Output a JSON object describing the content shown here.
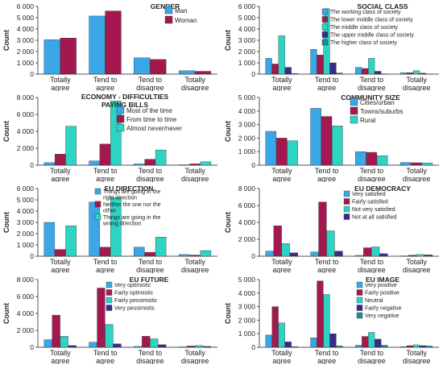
{
  "chart_data": [
    {
      "type": "bar",
      "title": "GENDER",
      "ylabel": "Count",
      "xlabel": "",
      "categories": [
        "Totally agree",
        "Tend to agree",
        "Tend to disagree",
        "Totally disagree"
      ],
      "ylim": [
        0,
        6000
      ],
      "yticks": [
        0,
        1000,
        2000,
        3000,
        4000,
        5000,
        6000
      ],
      "legend_position": "top-right",
      "series": [
        {
          "name": "Man",
          "color": "#3aa7e6",
          "values": [
            3050,
            5150,
            1450,
            300
          ]
        },
        {
          "name": "Woman",
          "color": "#a3194f",
          "values": [
            3200,
            5600,
            1300,
            250
          ]
        }
      ]
    },
    {
      "type": "bar",
      "title": "SOCIAL CLASS",
      "ylabel": "Count",
      "xlabel": "",
      "categories": [
        "Totally agree",
        "Tend to agree",
        "Tend to disagree",
        "Totally disagree"
      ],
      "ylim": [
        0,
        6000
      ],
      "yticks": [
        0,
        1000,
        2000,
        3000,
        4000,
        5000,
        6000
      ],
      "legend_position": "top-right",
      "series": [
        {
          "name": "The working class of society",
          "color": "#3aa7e6",
          "values": [
            1400,
            2200,
            600,
            120
          ]
        },
        {
          "name": "The lower middle class of society",
          "color": "#a3194f",
          "values": [
            900,
            1700,
            500,
            120
          ]
        },
        {
          "name": "The middle class of society",
          "color": "#2dd4c4",
          "values": [
            3400,
            5800,
            1400,
            300
          ]
        },
        {
          "name": "The upper middle class of society",
          "color": "#3a2a8c",
          "values": [
            600,
            1000,
            250,
            80
          ]
        },
        {
          "name": "The higher class of society",
          "color": "#1e8c8c",
          "values": [
            60,
            100,
            30,
            20
          ]
        }
      ]
    },
    {
      "type": "bar",
      "title": "ECONOMY - DIFFICULTIES PAYING BILLS",
      "ylabel": "Count",
      "xlabel": "",
      "categories": [
        "Totally agree",
        "Tend to agree",
        "Tend to disagree",
        "Totally disagree"
      ],
      "ylim": [
        0,
        8000
      ],
      "yticks": [
        0,
        2000,
        4000,
        6000,
        8000
      ],
      "legend_position": "top-right",
      "series": [
        {
          "name": "Most of the time",
          "color": "#3aa7e6",
          "values": [
            300,
            500,
            150,
            50
          ]
        },
        {
          "name": "From time to time",
          "color": "#a3194f",
          "values": [
            1300,
            2500,
            700,
            150
          ]
        },
        {
          "name": "Almost never/never",
          "color": "#2dd4c4",
          "values": [
            4600,
            7600,
            1800,
            400
          ]
        }
      ]
    },
    {
      "type": "bar",
      "title": "COMMUNITY SIZE",
      "ylabel": "Count",
      "xlabel": "",
      "categories": [
        "Totally agree",
        "Tend to agree",
        "Tend to disagree",
        "Totally disagree"
      ],
      "ylim": [
        0,
        5000
      ],
      "yticks": [
        0,
        1000,
        2000,
        3000,
        4000,
        5000
      ],
      "legend_position": "top-right",
      "series": [
        {
          "name": "Cities/urban",
          "color": "#3aa7e6",
          "values": [
            2500,
            4200,
            1000,
            200
          ]
        },
        {
          "name": "Towns/suburbs",
          "color": "#a3194f",
          "values": [
            2000,
            3600,
            950,
            180
          ]
        },
        {
          "name": "Rural",
          "color": "#2dd4c4",
          "values": [
            1800,
            2900,
            700,
            160
          ]
        }
      ]
    },
    {
      "type": "bar",
      "title": "EU DIRECTION",
      "ylabel": "Count",
      "xlabel": "",
      "categories": [
        "Totally agree",
        "Tend to agree",
        "Tend to disagree",
        "Totally disagree"
      ],
      "ylim": [
        0,
        6000
      ],
      "yticks": [
        0,
        1000,
        2000,
        3000,
        4000,
        5000,
        6000
      ],
      "legend_position": "top-right",
      "series": [
        {
          "name": "Things are going in the right direction",
          "color": "#3aa7e6",
          "values": [
            3000,
            4800,
            800,
            150
          ]
        },
        {
          "name": "Neither the one nor the other",
          "color": "#a3194f",
          "values": [
            600,
            800,
            350,
            100
          ]
        },
        {
          "name": "Things are going in the wrong direction",
          "color": "#2dd4c4",
          "values": [
            2700,
            5200,
            1700,
            500
          ]
        }
      ]
    },
    {
      "type": "bar",
      "title": "EU DEMOCRACY",
      "ylabel": "Count",
      "xlabel": "",
      "categories": [
        "Totally agree",
        "Tend to agree",
        "Tend to disagree",
        "Totally disagree"
      ],
      "ylim": [
        0,
        8000
      ],
      "yticks": [
        0,
        2000,
        4000,
        6000,
        8000
      ],
      "legend_position": "top-right",
      "series": [
        {
          "name": "Very satisfied",
          "color": "#3aa7e6",
          "values": [
            600,
            500,
            100,
            40
          ]
        },
        {
          "name": "Fairly satisfied",
          "color": "#a3194f",
          "values": [
            3600,
            6400,
            1000,
            120
          ]
        },
        {
          "name": "Not very satisfied",
          "color": "#2dd4c4",
          "values": [
            1500,
            3000,
            1100,
            200
          ]
        },
        {
          "name": "Not at all satisfied",
          "color": "#3a2a8c",
          "values": [
            400,
            600,
            300,
            150
          ]
        }
      ]
    },
    {
      "type": "bar",
      "title": "EU FUTURE",
      "ylabel": "Count",
      "xlabel": "",
      "categories": [
        "Totally agree",
        "Tend to agree",
        "Tend to disagree",
        "Totally disagree"
      ],
      "ylim": [
        0,
        8000
      ],
      "yticks": [
        0,
        2000,
        4000,
        6000,
        8000
      ],
      "legend_position": "top-right",
      "series": [
        {
          "name": "Very optimistic",
          "color": "#3aa7e6",
          "values": [
            900,
            600,
            100,
            50
          ]
        },
        {
          "name": "Fairly optimistic",
          "color": "#a3194f",
          "values": [
            3800,
            7000,
            1300,
            150
          ]
        },
        {
          "name": "Fairly pessimistic",
          "color": "#2dd4c4",
          "values": [
            1300,
            2700,
            1000,
            200
          ]
        },
        {
          "name": "Very pessimistic",
          "color": "#3a2a8c",
          "values": [
            200,
            400,
            300,
            100
          ]
        }
      ]
    },
    {
      "type": "bar",
      "title": "EU IMAGE",
      "ylabel": "Count",
      "xlabel": "",
      "categories": [
        "Totally agree",
        "Tend to agree",
        "Tend to disagree",
        "Totally disagree"
      ],
      "ylim": [
        0,
        5000
      ],
      "yticks": [
        0,
        1000,
        2000,
        3000,
        4000,
        5000
      ],
      "legend_position": "top-right",
      "series": [
        {
          "name": "Very positive",
          "color": "#3aa7e6",
          "values": [
            900,
            700,
            150,
            50
          ]
        },
        {
          "name": "Fairly positive",
          "color": "#a3194f",
          "values": [
            3000,
            4900,
            800,
            120
          ]
        },
        {
          "name": "Neutral",
          "color": "#2dd4c4",
          "values": [
            1800,
            3900,
            1100,
            180
          ]
        },
        {
          "name": "Fairly negative",
          "color": "#3a2a8c",
          "values": [
            400,
            1000,
            600,
            120
          ]
        },
        {
          "name": "Very negative",
          "color": "#1e8c8c",
          "values": [
            50,
            100,
            150,
            90
          ]
        }
      ]
    }
  ]
}
